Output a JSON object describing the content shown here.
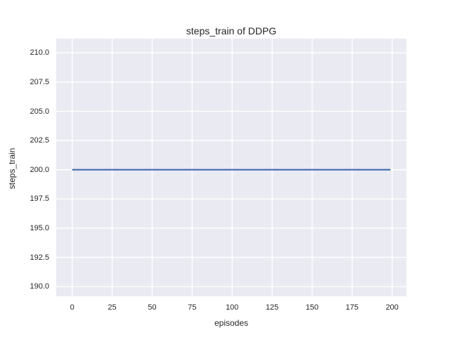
{
  "colors": {
    "figure_bg": "#ffffff",
    "axes_bg": "#eaeaf2",
    "grid": "#ffffff",
    "text": "#262626",
    "line": "#4c72b0"
  },
  "chart_data": {
    "type": "line",
    "title": "steps_train of DDPG",
    "xlabel": "episodes",
    "ylabel": "steps_train",
    "xlim": [
      -9.95,
      208.95
    ],
    "ylim": [
      189.17,
      211.22
    ],
    "xticks": [
      0,
      25,
      50,
      75,
      100,
      125,
      150,
      175,
      200
    ],
    "xtick_labels": [
      "0",
      "25",
      "50",
      "75",
      "100",
      "125",
      "150",
      "175",
      "200"
    ],
    "yticks": [
      190,
      192.5,
      195,
      197.5,
      200,
      202.5,
      205,
      207.5,
      210
    ],
    "ytick_labels": [
      "190.0",
      "192.5",
      "195.0",
      "197.5",
      "200.0",
      "202.5",
      "205.0",
      "207.5",
      "210.0"
    ],
    "grid": true,
    "legend": false,
    "series": [
      {
        "name": "steps_train",
        "color": "#4c72b0",
        "x": [
          0,
          199
        ],
        "y": [
          200,
          200
        ]
      }
    ]
  }
}
